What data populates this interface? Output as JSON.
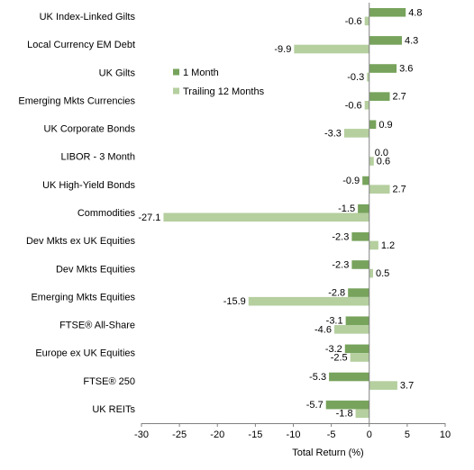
{
  "chart_data": {
    "type": "bar",
    "orientation": "horizontal",
    "categories": [
      "UK Index-Linked Gilts",
      "Local Currency EM Debt",
      "UK Gilts",
      "Emerging Mkts Currencies",
      "UK Corporate Bonds",
      "LIBOR - 3 Month",
      "UK High-Yield Bonds",
      "Commodities",
      "Dev Mkts ex UK Equities",
      "Dev Mkts Equities",
      "Emerging Mkts Equities",
      "FTSE® All-Share",
      "Europe ex UK Equities",
      "FTSE® 250",
      "UK REITs"
    ],
    "series": [
      {
        "name": "1 Month",
        "color": "#77a35c",
        "values": [
          4.8,
          4.3,
          3.6,
          2.7,
          0.9,
          0.0,
          -0.9,
          -1.5,
          -2.3,
          -2.3,
          -2.8,
          -3.1,
          -3.2,
          -5.3,
          -5.7
        ],
        "labels": [
          "4.8",
          "4.3",
          "3.6",
          "2.7",
          "0.9",
          "0.0",
          "-0.9",
          "-1.5",
          "-2.3",
          "-2.3",
          "-2.8",
          "-3.1",
          "-3.2",
          "-5.3",
          "-5.7"
        ]
      },
      {
        "name": "Trailing 12 Months",
        "color": "#b5cf9f",
        "values": [
          -0.6,
          -9.9,
          -0.3,
          -0.6,
          -3.3,
          0.6,
          2.7,
          -27.1,
          1.2,
          0.5,
          -15.9,
          -4.6,
          -2.5,
          3.7,
          -1.8
        ],
        "labels": [
          "-0.6",
          "-9.9",
          "-0.3",
          "-0.6",
          "-3.3",
          "0.6",
          "2.7",
          "-27.1",
          "1.2",
          "0.5",
          "-15.9",
          "-4.6",
          "-2.5",
          "3.7",
          "-1.8"
        ]
      }
    ],
    "xlabel": "Total Return (%)",
    "ylabel": "",
    "title": "",
    "xlim": [
      -30,
      10
    ],
    "xticks": [
      -30,
      -25,
      -20,
      -15,
      -10,
      -5,
      0,
      5,
      10
    ],
    "xtick_labels": [
      "-30",
      "-25",
      "-20",
      "-15",
      "-10",
      "-5",
      "0",
      "5",
      "10"
    ],
    "grid": false,
    "legend_position": "upper-middle"
  }
}
